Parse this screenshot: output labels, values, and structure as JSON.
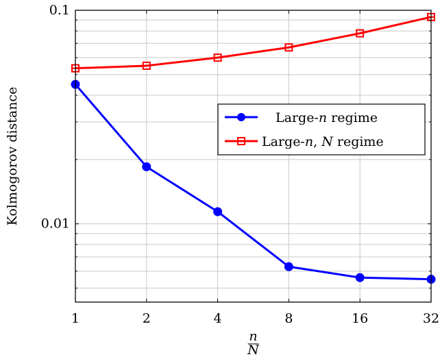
{
  "chart_data": {
    "type": "line",
    "xscale": "log2",
    "yscale": "log10",
    "x": [
      1,
      2,
      4,
      8,
      16,
      32
    ],
    "x_tick_labels": [
      "1",
      "2",
      "4",
      "8",
      "16",
      "32"
    ],
    "y_tick_labels": [
      "0.01",
      "0.1"
    ],
    "y_ticks": [
      0.01,
      0.1
    ],
    "xlim": [
      1,
      32
    ],
    "ylim": [
      0.0043,
      0.1
    ],
    "xlabel_numerator": "n",
    "xlabel_denominator": "N",
    "ylabel": "Kolmogorov distance",
    "grid": true,
    "legend_position": "center-right",
    "series": [
      {
        "name": "Large-n regime",
        "name_parts": [
          "Large-",
          "n",
          " regime"
        ],
        "color": "#0000ff",
        "marker": "filled-circle",
        "values": [
          0.045,
          0.0185,
          0.0114,
          0.0063,
          0.0056,
          0.0055
        ]
      },
      {
        "name": "Large-n, N regime",
        "name_parts": [
          "Large-",
          "n",
          ", ",
          "N",
          " regime"
        ],
        "color": "#ff0000",
        "marker": "open-square",
        "values": [
          0.0535,
          0.055,
          0.06,
          0.067,
          0.078,
          0.093
        ]
      }
    ]
  }
}
